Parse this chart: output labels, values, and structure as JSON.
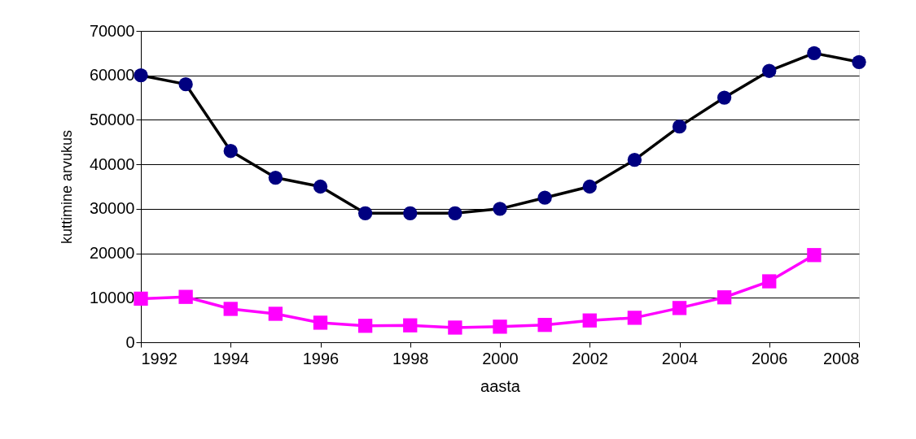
{
  "chart_data": {
    "type": "line",
    "xlabel": "aasta",
    "ylabel": "kuttimine   arvukus",
    "x": [
      1992,
      1993,
      1994,
      1995,
      1996,
      1997,
      1998,
      1999,
      2000,
      2001,
      2002,
      2003,
      2004,
      2005,
      2006,
      2007,
      2008
    ],
    "series": [
      {
        "color": "#000000",
        "colors": [
          "#000080",
          "#000080",
          "#000080",
          "#000080",
          "#000080",
          "#000080",
          "#000080",
          "#000080",
          "#000080",
          "#000080",
          "#000080",
          "#000080",
          "#000080",
          "#000080",
          "#000080",
          "#000080",
          "#000080"
        ],
        "marker": "circle",
        "values": [
          60000,
          58000,
          43000,
          37000,
          35000,
          29000,
          29000,
          29000,
          30000,
          32500,
          35000,
          41000,
          48500,
          55000,
          61000,
          65000,
          63000
        ]
      },
      {
        "color": "#ff00ff",
        "marker": "square",
        "values": [
          9800,
          10200,
          7500,
          6400,
          4400,
          3700,
          3800,
          3300,
          3500,
          3900,
          4900,
          5500,
          7700,
          10100,
          13700,
          19600,
          null
        ]
      }
    ],
    "xlim": [
      1992,
      2008
    ],
    "xticks": [
      1992,
      1994,
      1996,
      1998,
      2000,
      2002,
      2004,
      2006,
      2008
    ],
    "ylim": [
      0,
      70000
    ],
    "yticks": [
      0,
      10000,
      20000,
      30000,
      40000,
      50000,
      60000,
      70000
    ],
    "grid": "y",
    "line_style": "solid"
  }
}
